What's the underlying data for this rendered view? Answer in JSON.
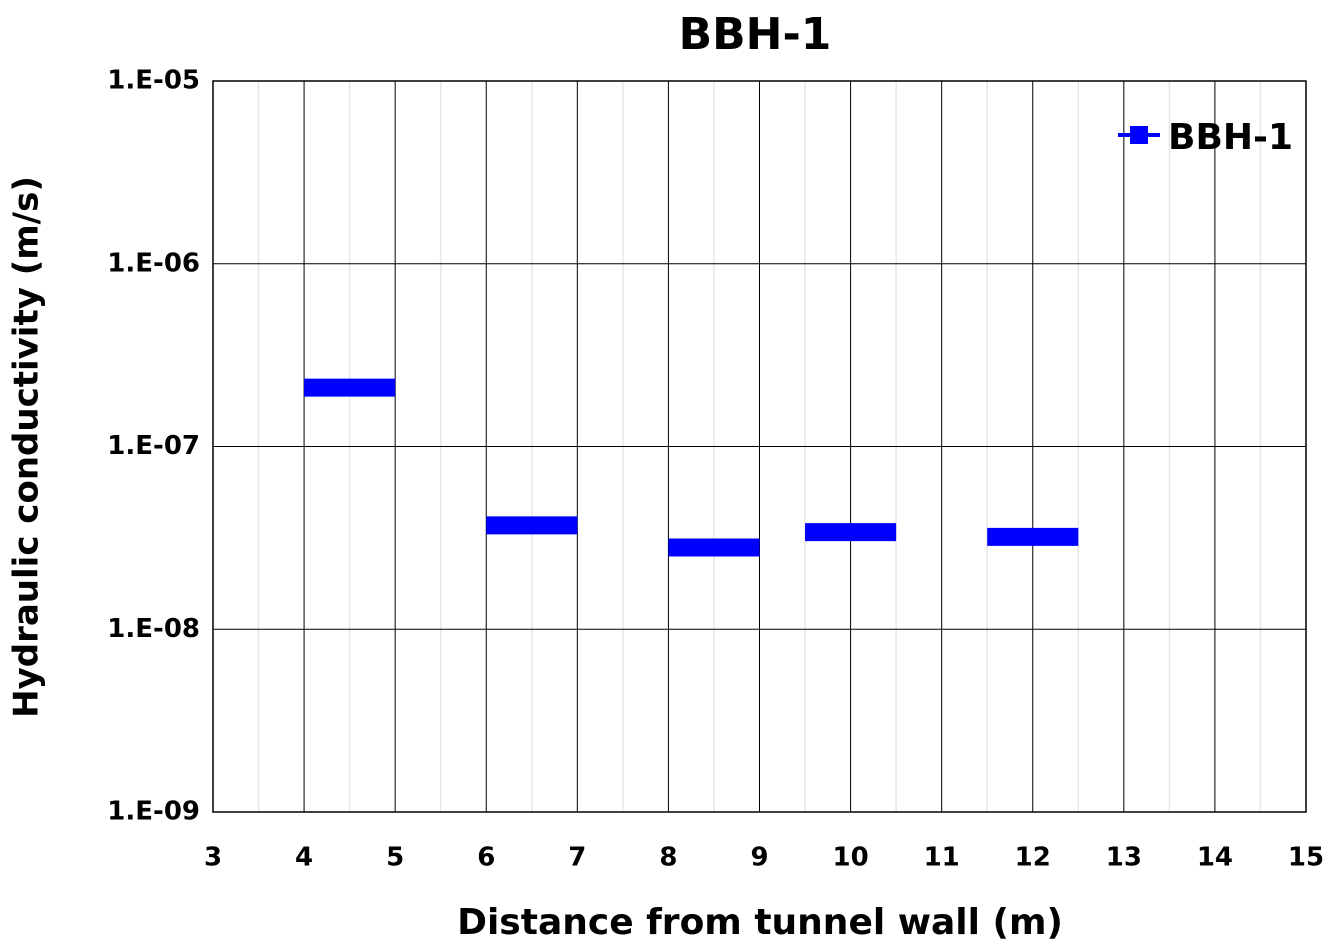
{
  "chart_data": {
    "type": "line",
    "title": "BBH-1",
    "x_label": "Distance from tunnel wall (m)",
    "y_label": "Hydraulic conductivity (m/s)",
    "x": [
      4,
      5,
      null,
      6,
      7,
      null,
      8,
      9,
      null,
      9.5,
      10.5,
      null,
      11.5,
      12.5
    ],
    "series": [
      {
        "name": "BBH-1",
        "color": "#0000ff",
        "values": [
          2.1e-07,
          2.1e-07,
          null,
          3.7e-08,
          3.7e-08,
          null,
          2.8e-08,
          2.8e-08,
          null,
          3.4e-08,
          3.4e-08,
          null,
          3.2e-08,
          3.2e-08
        ]
      }
    ],
    "xlim": [
      3,
      15
    ],
    "xticks": [
      3,
      4,
      5,
      6,
      7,
      8,
      9,
      10,
      11,
      12,
      13,
      14,
      15
    ],
    "ylim": [
      1e-09,
      1e-05
    ],
    "y_log": true,
    "yticks": [
      {
        "value": 1e-09,
        "label": "1.E-09"
      },
      {
        "value": 1e-08,
        "label": "1.E-08"
      },
      {
        "value": 1e-07,
        "label": "1.E-07"
      },
      {
        "value": 1e-06,
        "label": "1.E-06"
      },
      {
        "value": 1e-05,
        "label": "1.E-05"
      }
    ],
    "grid": true,
    "x_minor_grid": true,
    "legend": "upper right"
  }
}
